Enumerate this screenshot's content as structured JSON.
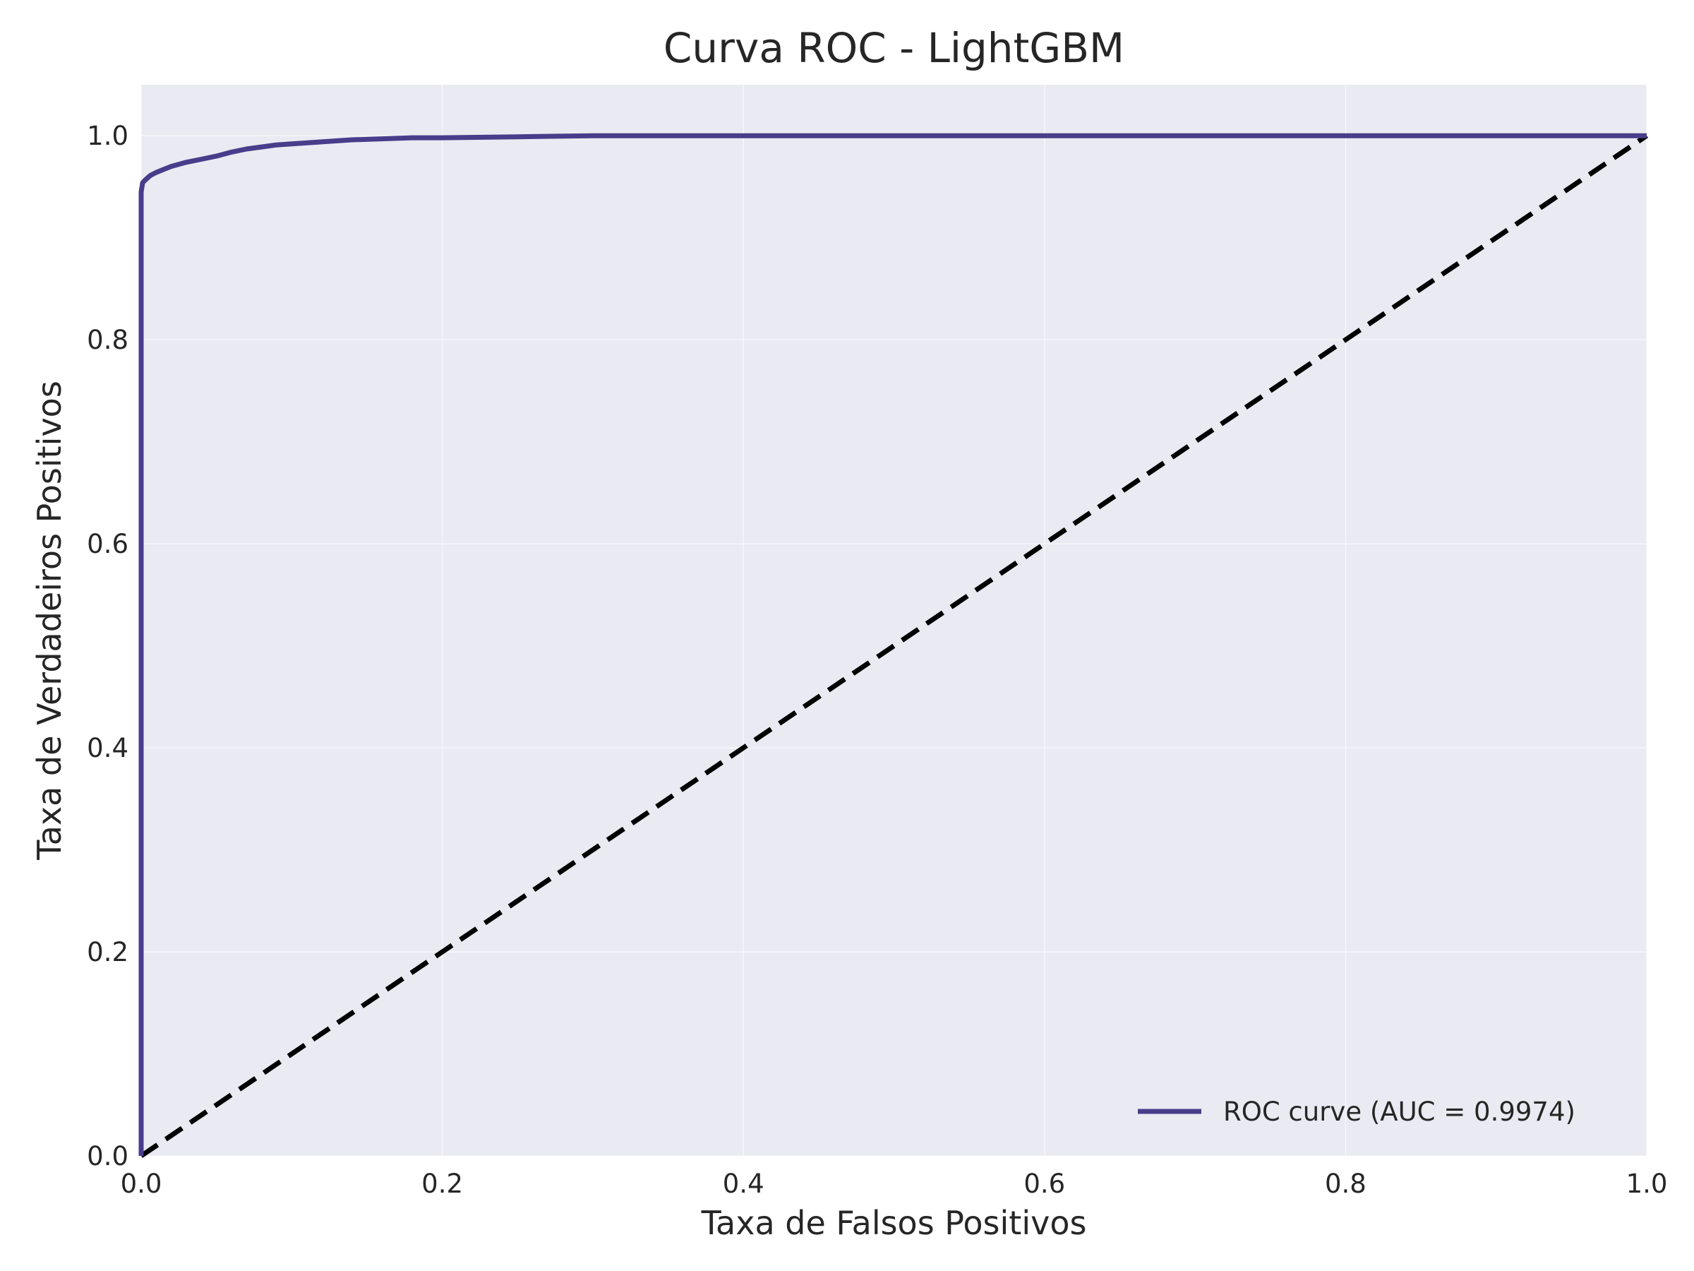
{
  "chart_data": {
    "type": "line",
    "title": "Curva ROC - LightGBM",
    "xlabel": "Taxa de Falsos Positivos",
    "ylabel": "Taxa de Verdadeiros Positivos",
    "xlim": [
      0.0,
      1.0
    ],
    "ylim": [
      0.0,
      1.05
    ],
    "x_ticks": [
      "0.0",
      "0.2",
      "0.4",
      "0.6",
      "0.8",
      "1.0"
    ],
    "y_ticks": [
      "0.0",
      "0.2",
      "0.4",
      "0.6",
      "0.8",
      "1.0"
    ],
    "grid": true,
    "legend_position": "lower right",
    "colors": {
      "roc": "#483d8b",
      "diagonal": "#000000",
      "plot_background": "#eaeaf2"
    },
    "series": [
      {
        "name": "ROC curve (AUC = 0.9974)",
        "style": "solid",
        "x": [
          0.0,
          0.0,
          0.0,
          0.001,
          0.003,
          0.006,
          0.01,
          0.015,
          0.02,
          0.03,
          0.04,
          0.05,
          0.06,
          0.07,
          0.08,
          0.09,
          0.1,
          0.12,
          0.14,
          0.16,
          0.18,
          0.2,
          0.25,
          0.3,
          0.5,
          0.7,
          1.0
        ],
        "y": [
          0.0,
          0.5,
          0.945,
          0.954,
          0.957,
          0.961,
          0.964,
          0.967,
          0.97,
          0.974,
          0.977,
          0.98,
          0.984,
          0.987,
          0.989,
          0.991,
          0.992,
          0.994,
          0.996,
          0.997,
          0.998,
          0.998,
          0.999,
          1.0,
          1.0,
          1.0,
          1.0
        ]
      },
      {
        "style": "dashed",
        "x": [
          0.0,
          1.0
        ],
        "y": [
          0.0,
          1.0
        ]
      }
    ]
  }
}
